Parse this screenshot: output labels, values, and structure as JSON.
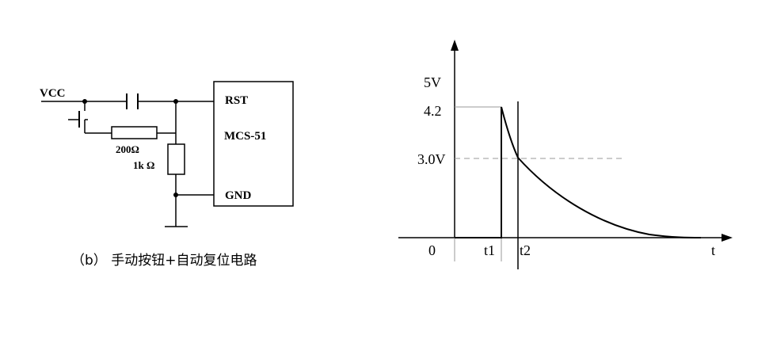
{
  "circuit": {
    "vcc_label": "VCC",
    "rst_label": "RST",
    "mcu_label": "MCS-51",
    "gnd_label": "GND",
    "resistor_series_label": "200Ω",
    "resistor_pulldown_label": "1k Ω",
    "caption": "（b）  手动按钮+自动复位电路"
  },
  "waveform": {
    "label_5v": "5V",
    "label_4_2": "4.2",
    "label_3_0v": "3.0V",
    "label_0": "0",
    "label_t1": "t1",
    "label_t2": "t2",
    "label_t": "t"
  }
}
